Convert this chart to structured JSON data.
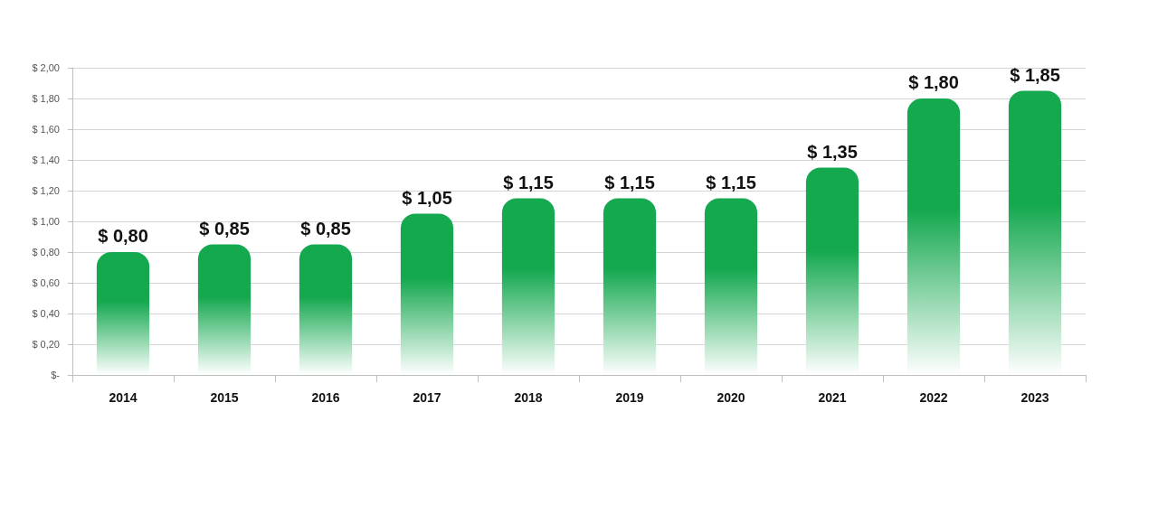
{
  "chart_data": {
    "type": "bar",
    "categories": [
      "2014",
      "2015",
      "2016",
      "2017",
      "2018",
      "2019",
      "2020",
      "2021",
      "2022",
      "2023"
    ],
    "values": [
      0.8,
      0.85,
      0.85,
      1.05,
      1.15,
      1.15,
      1.15,
      1.35,
      1.8,
      1.85
    ],
    "value_labels": [
      "$ 0,80",
      "$ 0,85",
      "$ 0,85",
      "$ 1,05",
      "$ 1,15",
      "$ 1,15",
      "$ 1,15",
      "$ 1,35",
      "$ 1,80",
      "$ 1,85"
    ],
    "color": "#14a84f",
    "ylim": [
      0,
      2
    ],
    "yticks": [
      {
        "value": 0,
        "label": "$-"
      },
      {
        "value": 0.2,
        "label": "$ 0,20"
      },
      {
        "value": 0.4,
        "label": "$ 0,40"
      },
      {
        "value": 0.6,
        "label": "$ 0,60"
      },
      {
        "value": 0.8,
        "label": "$ 0,80"
      },
      {
        "value": 1,
        "label": "$ 1,00"
      },
      {
        "value": 1.2,
        "label": "$ 1,20"
      },
      {
        "value": 1.4,
        "label": "$ 1,40"
      },
      {
        "value": 1.6,
        "label": "$ 1,60"
      },
      {
        "value": 1.8,
        "label": "$ 1,80"
      },
      {
        "value": 2,
        "label": "$ 2,00"
      }
    ],
    "grid": "y"
  }
}
